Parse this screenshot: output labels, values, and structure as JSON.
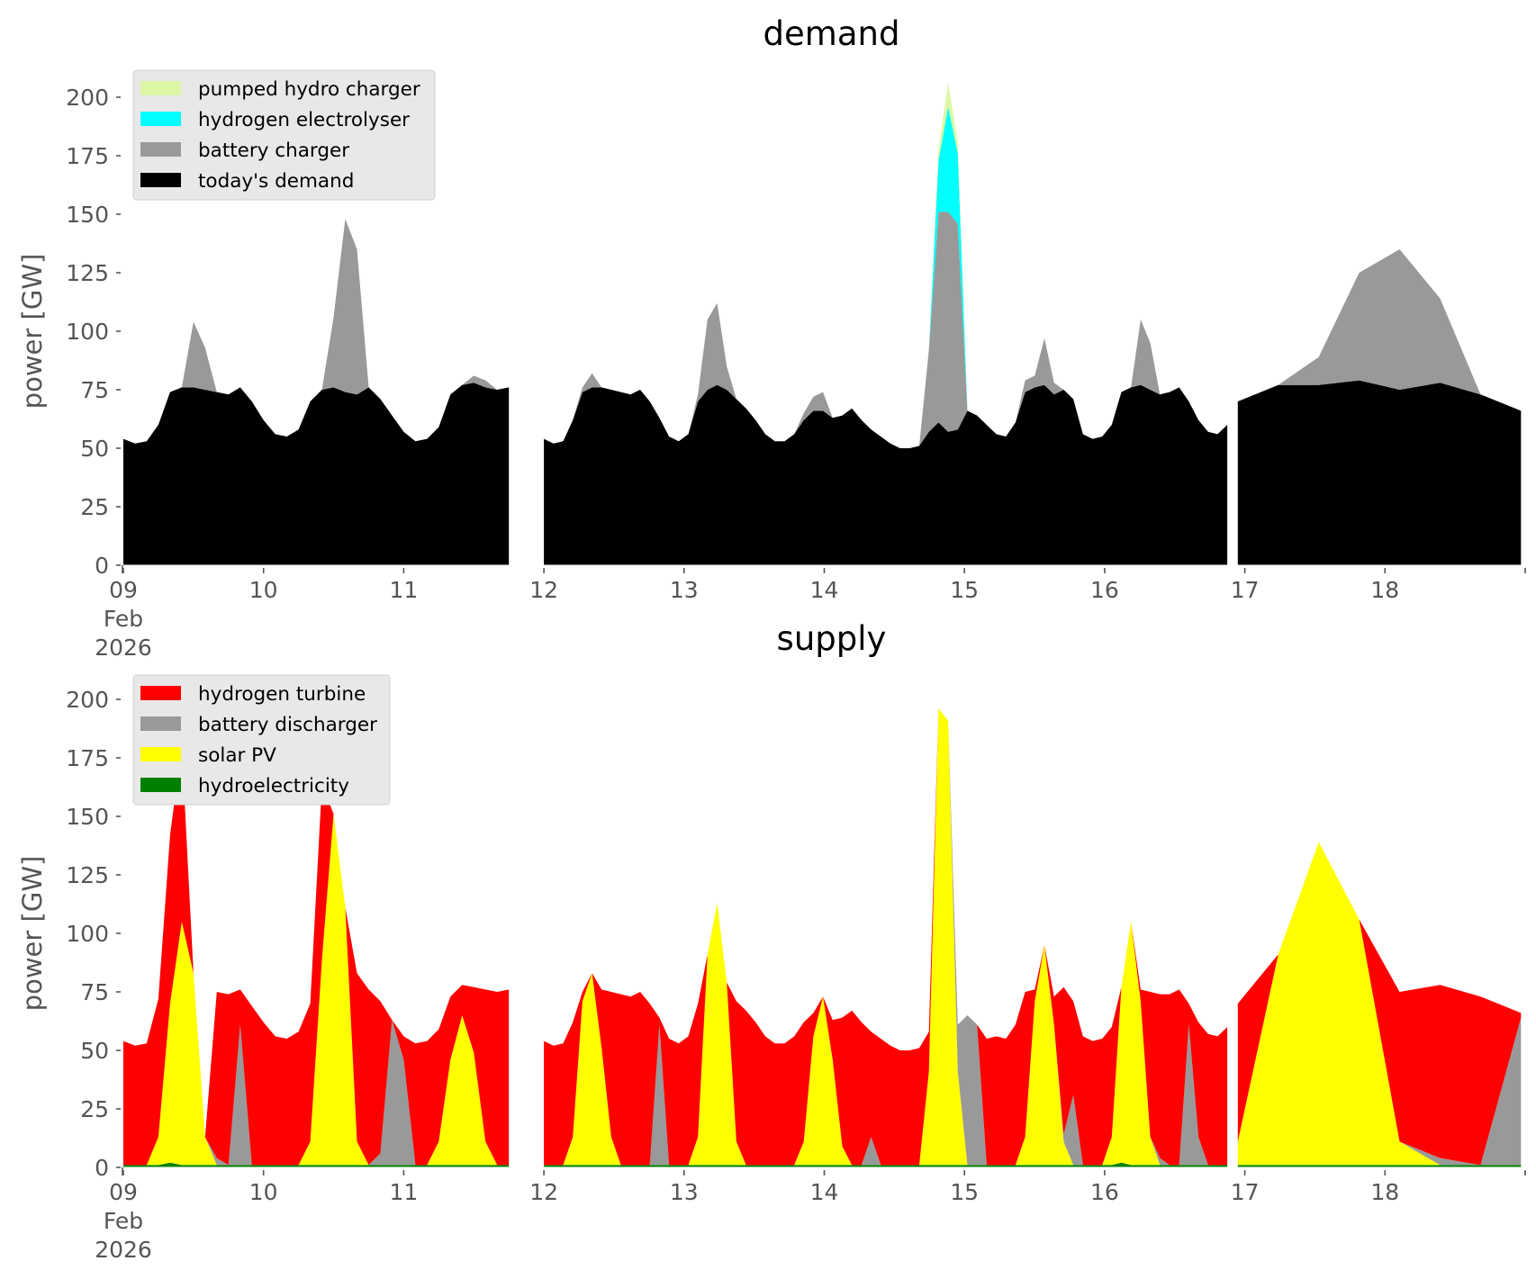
{
  "chart_data": [
    {
      "type": "area",
      "stacked": true,
      "title": "demand",
      "xlabel": "",
      "ylabel": "power [GW]",
      "xlim": [
        9,
        19
      ],
      "ylim": [
        0,
        215
      ],
      "yticks": [
        0,
        25,
        50,
        75,
        100,
        125,
        150,
        175,
        200
      ],
      "xtick_labels": [
        "09\nFeb\n2026",
        "10",
        "11",
        "12",
        "13",
        "14",
        "15",
        "16",
        "17",
        "18"
      ],
      "xticks": [
        9,
        10,
        11,
        12,
        13,
        14,
        15,
        16,
        17,
        18
      ],
      "grid": false,
      "legend_position": "top-left",
      "x_step_days": 0.125,
      "x_start": 9,
      "gaps": [
        [
          11.75,
          12.0
        ],
        [
          16.875,
          16.95
        ]
      ],
      "series": [
        {
          "name": "today's demand",
          "color": "#000000",
          "values": [
            54,
            52,
            53,
            60,
            74,
            76,
            76,
            75,
            74,
            73,
            76,
            70,
            62,
            56,
            55,
            58,
            70,
            75,
            76,
            74,
            73,
            76,
            71,
            64,
            57,
            53,
            54,
            59,
            73,
            77,
            78,
            76,
            75,
            76,
            54,
            52,
            53,
            62,
            74,
            76,
            76,
            75,
            74,
            73,
            75,
            70,
            63,
            55,
            53,
            56,
            70,
            75,
            77,
            75,
            71,
            67,
            62,
            56,
            53,
            53,
            56,
            62,
            66,
            66,
            63,
            64,
            67,
            62,
            58,
            55,
            52,
            50,
            50,
            51,
            57,
            61,
            57,
            58,
            66,
            64,
            60,
            56,
            55,
            61,
            74,
            76,
            77,
            73,
            75,
            71,
            56,
            54,
            55,
            60,
            74,
            76,
            77,
            75,
            73,
            74,
            76,
            70,
            62,
            57,
            56,
            60,
            70,
            77,
            77,
            79,
            75,
            78,
            73,
            66
          ]
        },
        {
          "name": "battery charger",
          "color": "#999999",
          "values": [
            0,
            0,
            0,
            0,
            0,
            0,
            28,
            18,
            0,
            0,
            0,
            0,
            0,
            0,
            0,
            0,
            0,
            0,
            30,
            74,
            62,
            0,
            0,
            0,
            0,
            0,
            0,
            0,
            0,
            0,
            3,
            3,
            0,
            0,
            0,
            0,
            0,
            0,
            2,
            6,
            0,
            0,
            0,
            0,
            0,
            0,
            0,
            0,
            0,
            0,
            3,
            30,
            35,
            10,
            0,
            0,
            0,
            0,
            0,
            0,
            0,
            3,
            6,
            8,
            0,
            0,
            0,
            0,
            0,
            0,
            0,
            0,
            0,
            0,
            35,
            90,
            94,
            88,
            0,
            0,
            0,
            0,
            0,
            0,
            5,
            5,
            20,
            5,
            0,
            0,
            0,
            0,
            0,
            0,
            0,
            0,
            28,
            20,
            0,
            0,
            0,
            0,
            0,
            0,
            0,
            0,
            0,
            0,
            12,
            46,
            60,
            36,
            0,
            0
          ]
        },
        {
          "name": "hydrogen electrolyser",
          "color": "#00ffff",
          "values": [
            0,
            0,
            0,
            0,
            0,
            0,
            0,
            0,
            0,
            0,
            0,
            0,
            0,
            0,
            0,
            0,
            0,
            0,
            0,
            0,
            0,
            0,
            0,
            0,
            0,
            0,
            0,
            0,
            0,
            0,
            0,
            0,
            0,
            0,
            0,
            0,
            0,
            0,
            0,
            0,
            0,
            0,
            0,
            0,
            0,
            0,
            0,
            0,
            0,
            0,
            0,
            0,
            0,
            0,
            0,
            0,
            0,
            0,
            0,
            0,
            0,
            0,
            0,
            0,
            0,
            0,
            0,
            0,
            0,
            0,
            0,
            0,
            0,
            0,
            0,
            22,
            45,
            30,
            0,
            0,
            0,
            0,
            0,
            0,
            0,
            0,
            0,
            0,
            0,
            0,
            0,
            0,
            0,
            0,
            0,
            0,
            0,
            0,
            0,
            0,
            0,
            0,
            0,
            0,
            0,
            0,
            0,
            0,
            0,
            0,
            0,
            0,
            0,
            0
          ]
        },
        {
          "name": "pumped hydro charger",
          "color": "#dcf7a4",
          "values": [
            0,
            0,
            0,
            0,
            0,
            0,
            0,
            0,
            0,
            0,
            0,
            0,
            0,
            0,
            0,
            0,
            0,
            0,
            0,
            0,
            0,
            0,
            0,
            0,
            0,
            0,
            0,
            0,
            0,
            0,
            0,
            0,
            0,
            0,
            0,
            0,
            0,
            0,
            0,
            0,
            0,
            0,
            0,
            0,
            0,
            0,
            0,
            0,
            0,
            0,
            0,
            0,
            0,
            0,
            0,
            0,
            0,
            0,
            0,
            0,
            0,
            0,
            0,
            0,
            0,
            0,
            0,
            0,
            0,
            0,
            0,
            0,
            0,
            0,
            0,
            5,
            10,
            5,
            0,
            0,
            0,
            0,
            0,
            0,
            0,
            0,
            0,
            0,
            0,
            0,
            0,
            0,
            0,
            0,
            0,
            0,
            0,
            0,
            0,
            0,
            0,
            0,
            0,
            0,
            0,
            0,
            0,
            0,
            0,
            0,
            0,
            0,
            0,
            0
          ]
        }
      ]
    },
    {
      "type": "area",
      "stacked": true,
      "title": "supply",
      "xlabel": "",
      "ylabel": "power [GW]",
      "xlim": [
        9,
        19
      ],
      "ylim": [
        0,
        215
      ],
      "yticks": [
        0,
        25,
        50,
        75,
        100,
        125,
        150,
        175,
        200
      ],
      "xtick_labels": [
        "09\nFeb\n2026",
        "10",
        "11",
        "12",
        "13",
        "14",
        "15",
        "16",
        "17",
        "18"
      ],
      "xticks": [
        9,
        10,
        11,
        12,
        13,
        14,
        15,
        16,
        17,
        18
      ],
      "grid": false,
      "legend_position": "top-left",
      "x_step_days": 0.125,
      "x_start": 9,
      "gaps": [
        [
          11.75,
          12.0
        ],
        [
          16.875,
          16.95
        ]
      ],
      "series": [
        {
          "name": "hydroelectricity",
          "color": "#008000",
          "values": [
            1,
            1,
            1,
            1,
            2,
            1,
            1,
            1,
            1,
            1,
            1,
            1,
            1,
            1,
            1,
            1,
            1,
            1,
            1,
            1,
            1,
            1,
            1,
            1,
            1,
            1,
            1,
            1,
            1,
            1,
            1,
            1,
            1,
            1,
            1,
            1,
            1,
            1,
            1,
            1,
            1,
            1,
            1,
            1,
            1,
            1,
            1,
            1,
            1,
            1,
            1,
            1,
            1,
            1,
            1,
            1,
            1,
            1,
            1,
            1,
            1,
            1,
            1,
            1,
            1,
            1,
            1,
            1,
            1,
            1,
            1,
            1,
            1,
            1,
            1,
            1,
            1,
            1,
            1,
            1,
            1,
            1,
            1,
            1,
            1,
            1,
            1,
            1,
            1,
            1,
            1,
            1,
            1,
            1,
            2,
            1,
            1,
            1,
            1,
            1,
            1,
            1,
            1,
            1,
            1,
            1,
            1,
            1,
            1,
            1,
            1,
            1,
            1,
            1
          ]
        },
        {
          "name": "solar PV",
          "color": "#ffff00",
          "values": [
            0,
            0,
            0,
            12,
            68,
            104,
            82,
            12,
            0,
            0,
            0,
            0,
            0,
            0,
            0,
            0,
            10,
            88,
            150,
            110,
            10,
            0,
            0,
            0,
            0,
            0,
            0,
            10,
            45,
            64,
            48,
            10,
            0,
            0,
            0,
            0,
            0,
            12,
            70,
            82,
            50,
            12,
            0,
            0,
            0,
            0,
            0,
            0,
            0,
            0,
            12,
            90,
            112,
            78,
            10,
            0,
            0,
            0,
            0,
            0,
            0,
            10,
            55,
            72,
            45,
            8,
            0,
            0,
            0,
            0,
            0,
            0,
            0,
            0,
            40,
            195,
            190,
            40,
            0,
            0,
            0,
            0,
            0,
            0,
            12,
            70,
            94,
            60,
            10,
            0,
            0,
            0,
            0,
            12,
            75,
            104,
            70,
            12,
            0,
            0,
            0,
            0,
            0,
            0,
            0,
            0,
            10,
            90,
            138,
            105,
            10,
            0,
            0,
            0
          ]
        },
        {
          "name": "battery discharger",
          "color": "#999999",
          "values": [
            0,
            0,
            0,
            0,
            0,
            0,
            0,
            0,
            3,
            0,
            60,
            0,
            0,
            0,
            0,
            0,
            0,
            0,
            0,
            0,
            0,
            0,
            5,
            62,
            45,
            0,
            0,
            0,
            0,
            0,
            0,
            0,
            0,
            0,
            0,
            0,
            0,
            0,
            0,
            0,
            0,
            0,
            0,
            0,
            0,
            0,
            60,
            0,
            0,
            0,
            0,
            0,
            0,
            0,
            0,
            0,
            0,
            0,
            0,
            0,
            0,
            0,
            0,
            0,
            0,
            0,
            0,
            0,
            12,
            0,
            0,
            0,
            0,
            0,
            0,
            0,
            0,
            20,
            64,
            60,
            0,
            0,
            0,
            0,
            0,
            0,
            0,
            0,
            3,
            30,
            0,
            0,
            0,
            0,
            0,
            0,
            0,
            0,
            3,
            0,
            0,
            60,
            12,
            0,
            0,
            0,
            0,
            0,
            0,
            0,
            0,
            3,
            0,
            63
          ]
        },
        {
          "name": "hydrogen turbine",
          "color": "#ff0000",
          "values": [
            53,
            51,
            52,
            59,
            72,
            75,
            0,
            0,
            71,
            73,
            15,
            68,
            61,
            55,
            54,
            57,
            59,
            75,
            0,
            0,
            72,
            75,
            65,
            0,
            10,
            52,
            53,
            48,
            27,
            13,
            28,
            65,
            74,
            75,
            53,
            51,
            52,
            49,
            4,
            0,
            25,
            62,
            73,
            72,
            74,
            69,
            3,
            54,
            52,
            55,
            57,
            0,
            0,
            0,
            60,
            66,
            61,
            55,
            52,
            52,
            55,
            51,
            10,
            0,
            17,
            55,
            66,
            61,
            45,
            54,
            51,
            49,
            49,
            50,
            17,
            0,
            0,
            0,
            0,
            0,
            54,
            55,
            54,
            60,
            62,
            5,
            0,
            12,
            63,
            40,
            55,
            53,
            54,
            47,
            0,
            0,
            5,
            62,
            70,
            73,
            75,
            9,
            49,
            56,
            55,
            59,
            59,
            0,
            0,
            0,
            64,
            74,
            72,
            2
          ]
        }
      ]
    }
  ],
  "demand_chart": {
    "title": "demand",
    "ylabel": "power [GW]",
    "legend": [
      "pumped hydro charger",
      "hydrogen electrolyser",
      "battery charger",
      "today's demand"
    ],
    "legend_colors": [
      "#dcf7a4",
      "#00ffff",
      "#999999",
      "#000000"
    ]
  },
  "supply_chart": {
    "title": "supply",
    "ylabel": "power [GW]",
    "legend": [
      "hydrogen turbine",
      "battery discharger",
      "solar PV",
      "hydroelectricity"
    ],
    "legend_colors": [
      "#ff0000",
      "#999999",
      "#ffff00",
      "#008000"
    ]
  }
}
